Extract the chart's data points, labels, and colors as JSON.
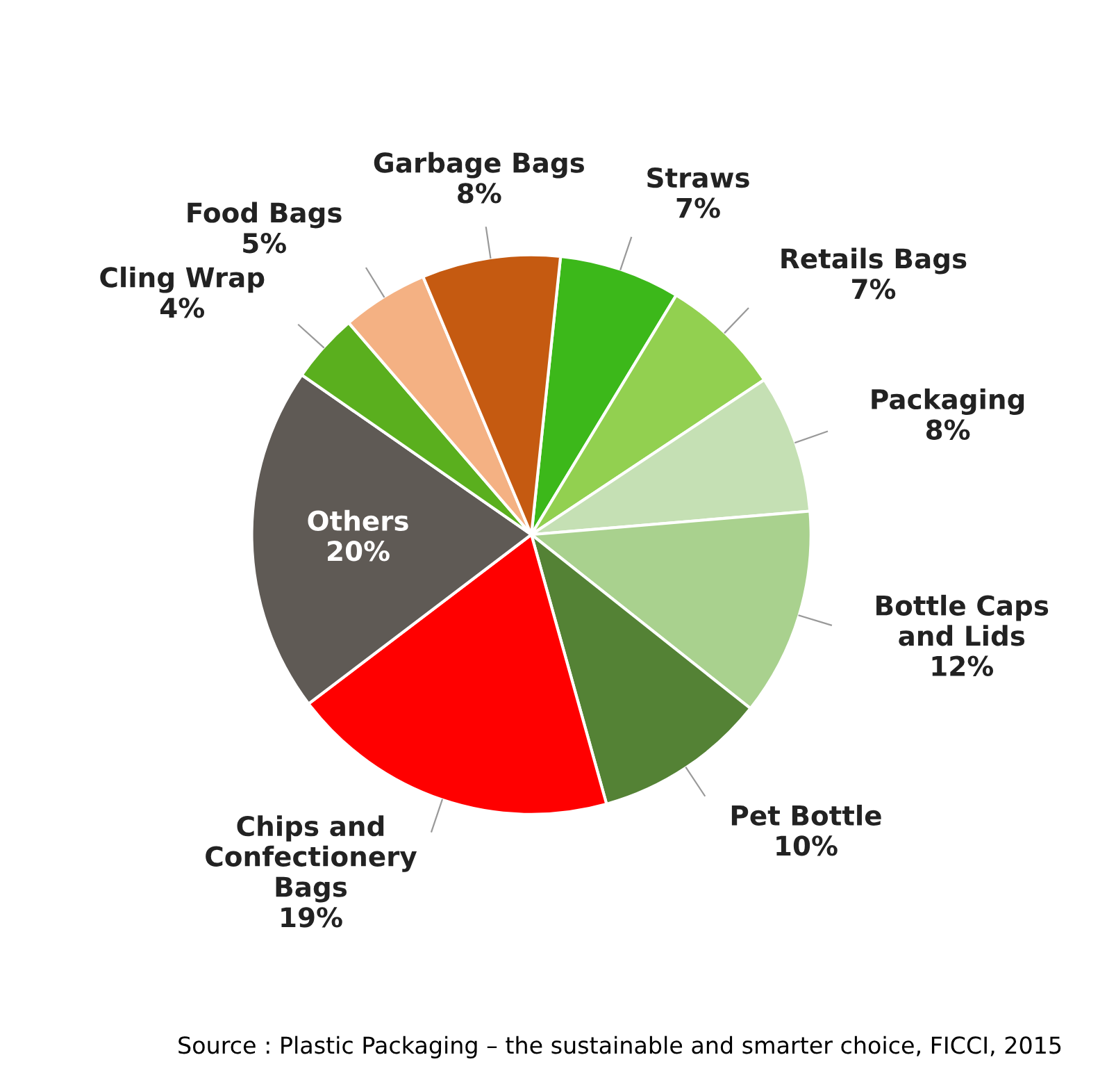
{
  "chart_data": {
    "type": "pie",
    "categories": [
      "Straws",
      "Retails Bags",
      "Packaging",
      "Bottle Caps and Lids",
      "Pet Bottle",
      "Chips and Confectionery Bags",
      "Others",
      "Cling Wrap",
      "Food Bags",
      "Garbage Bags"
    ],
    "values": [
      7,
      7,
      8,
      12,
      10,
      19,
      20,
      4,
      5,
      8
    ],
    "value_labels": [
      "7%",
      "7%",
      "8%",
      "12%",
      "10%",
      "19%",
      "20%",
      "4%",
      "5%",
      "8%"
    ],
    "colors": [
      "#3cb81a",
      "#92d050",
      "#c5e0b4",
      "#a9d18e",
      "#548235",
      "#ff0000",
      "#5f5a55",
      "#5aaf1e",
      "#f4b183",
      "#c55a11"
    ],
    "annotations": [
      "Source : Plastic Packaging – the sustainable and smarter choice, FICCI, 2015"
    ]
  }
}
